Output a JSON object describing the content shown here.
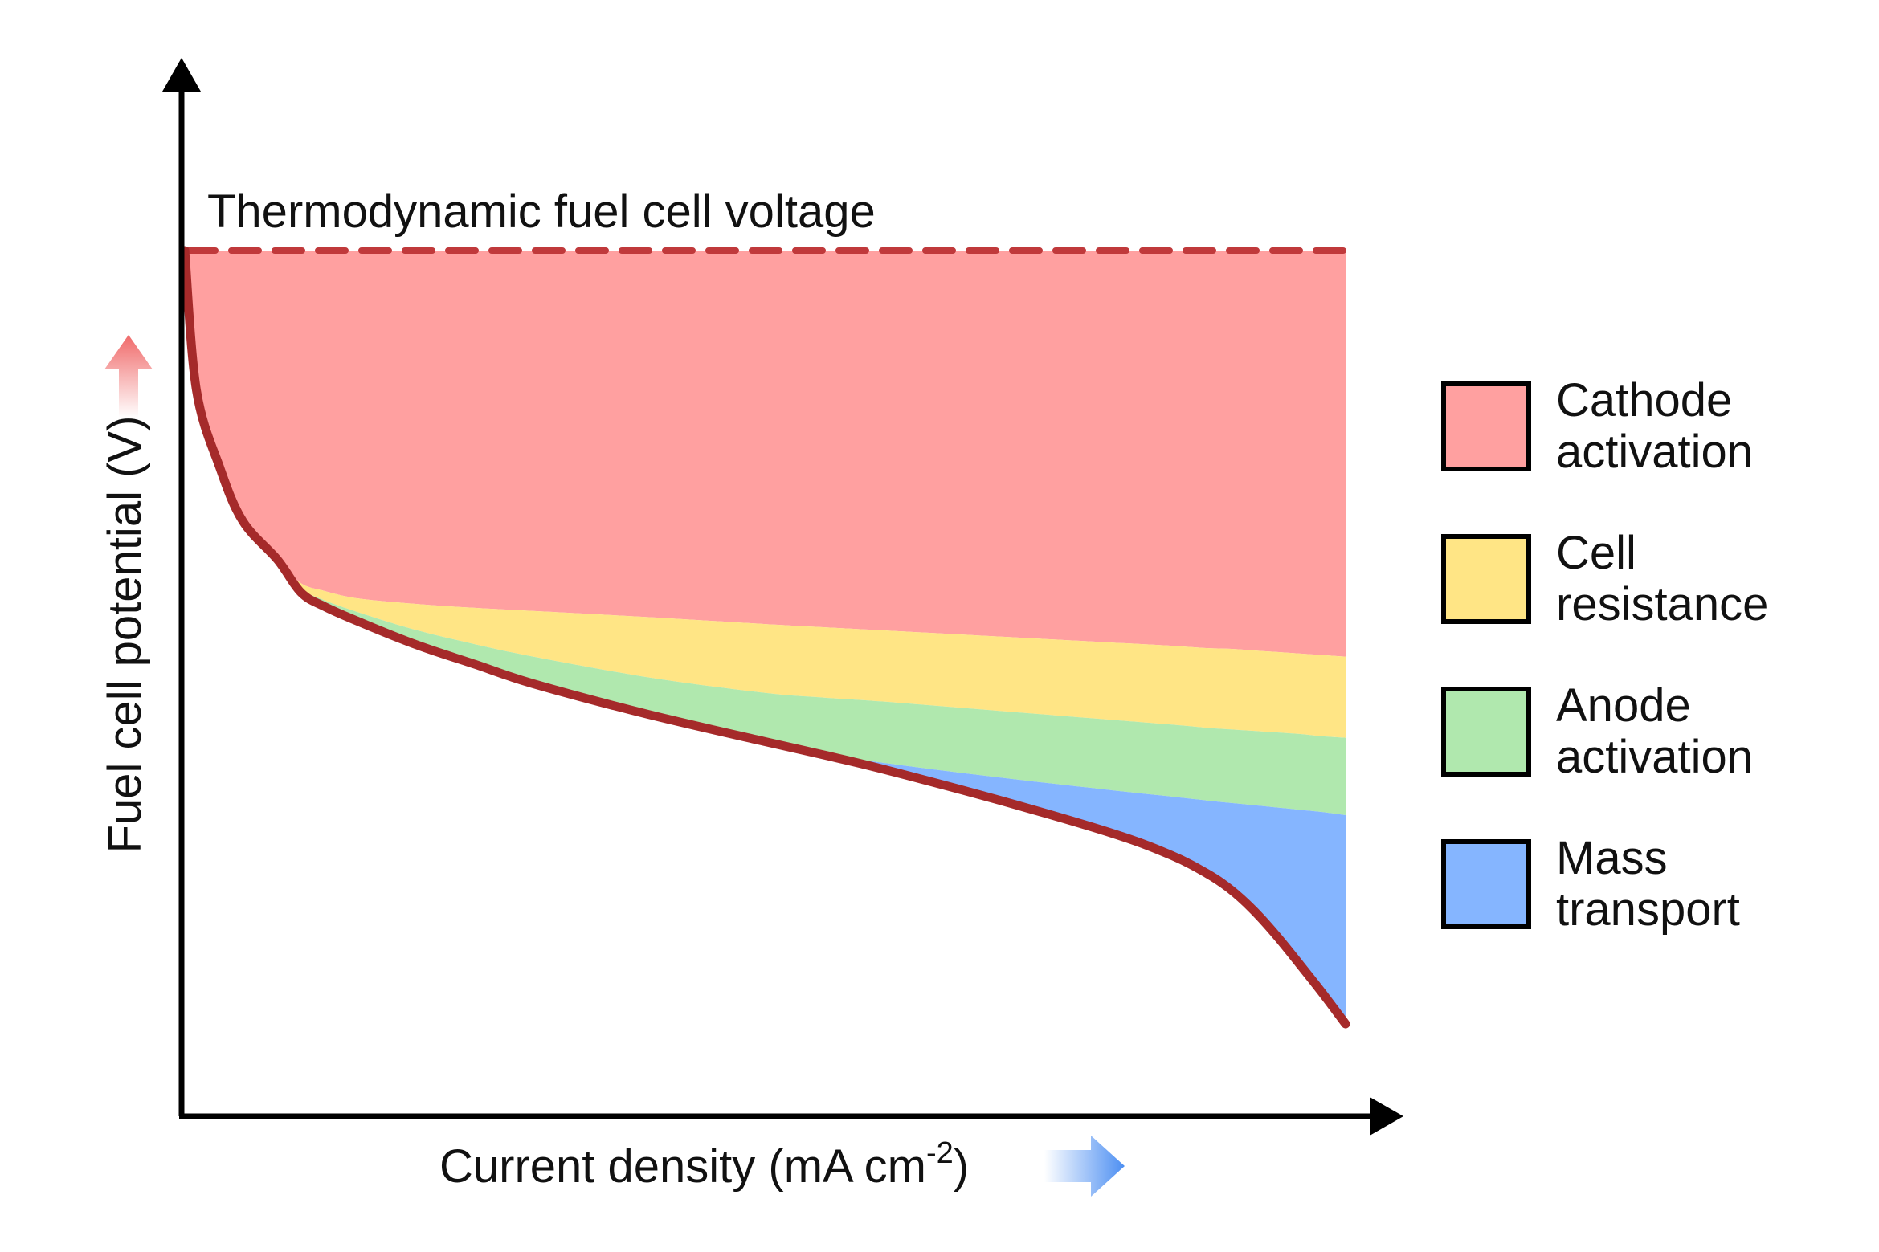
{
  "chart_data": {
    "type": "area",
    "title": "",
    "xlabel": "Current density (mA cm",
    "xlabel_sup": "-2",
    "xlabel_close": ")",
    "ylabel": "Fuel cell potential (V)",
    "annotation": "Thermodynamic fuel cell voltage",
    "x_ticks": [],
    "y_ticks": [],
    "grid": false,
    "legend_position": "right",
    "xlim": [
      0,
      100
    ],
    "ylim": [
      0,
      100
    ],
    "thermodynamic_voltage": 100,
    "x": [
      0,
      1,
      3,
      5,
      8,
      10,
      12,
      15,
      20,
      25,
      30,
      40,
      50,
      55,
      60,
      70,
      80,
      85,
      88,
      90,
      92,
      94,
      96,
      98,
      100
    ],
    "series": [
      {
        "name": "Cathode activation",
        "color": "#ffa0a0",
        "upper": [
          100,
          100,
          100,
          100,
          100,
          100,
          100,
          100,
          100,
          100,
          100,
          100,
          100,
          100,
          100,
          100,
          100,
          100,
          100,
          100,
          100,
          100,
          100,
          100,
          100
        ],
        "lower": [
          100,
          82,
          72,
          65,
          60,
          57,
          56,
          55,
          54.3,
          53.8,
          53.4,
          52.6,
          51.7,
          51.3,
          50.9,
          50.1,
          49.3,
          48.9,
          48.6,
          48.5,
          48.3,
          48.1,
          47.9,
          47.7,
          47.5
        ]
      },
      {
        "name": "Cell resistance",
        "color": "#ffe585",
        "upper": [
          100,
          82,
          72,
          65,
          60,
          57,
          56,
          55,
          54.3,
          53.8,
          53.4,
          52.6,
          51.7,
          51.3,
          50.9,
          50.1,
          49.3,
          48.9,
          48.6,
          48.5,
          48.3,
          48.1,
          47.9,
          47.7,
          47.5
        ],
        "lower": [
          100,
          82,
          72,
          65,
          60,
          56.3,
          54.8,
          53.2,
          50.9,
          49.1,
          47.5,
          44.8,
          42.8,
          42.2,
          41.7,
          40.5,
          39.3,
          38.7,
          38.3,
          38.1,
          37.9,
          37.7,
          37.5,
          37.2,
          37.0
        ]
      },
      {
        "name": "Anode activation",
        "color": "#b0e8ae",
        "upper": [
          100,
          82,
          72,
          65,
          60,
          56.3,
          54.8,
          53.2,
          50.9,
          49.1,
          47.5,
          44.8,
          42.8,
          42.2,
          41.7,
          40.5,
          39.3,
          38.7,
          38.3,
          38.1,
          37.9,
          37.7,
          37.5,
          37.2,
          37.0
        ],
        "lower": [
          100,
          82,
          72,
          65,
          60,
          55.8,
          54.0,
          52.0,
          49.0,
          46.5,
          44.0,
          40.0,
          36.5,
          35.0,
          33.8,
          31.9,
          30.2,
          29.4,
          28.9,
          28.6,
          28.3,
          28.0,
          27.7,
          27.4,
          27.0
        ]
      },
      {
        "name": "Mass transport",
        "color": "#85b5ff",
        "upper": [
          100,
          82,
          72,
          65,
          60,
          55.8,
          54.0,
          52.0,
          49.0,
          46.5,
          44.0,
          40.0,
          36.5,
          35.0,
          33.8,
          31.9,
          30.2,
          29.4,
          28.9,
          28.6,
          28.3,
          28.0,
          27.7,
          27.4,
          27.0
        ],
        "lower": [
          100,
          82,
          72,
          65,
          60,
          55.8,
          54.0,
          52.0,
          49.0,
          46.5,
          44.0,
          40.0,
          36.5,
          34.8,
          33.0,
          29.0,
          24.6,
          21.8,
          19.5,
          17.5,
          14.8,
          11.5,
          7.8,
          4.0,
          0
        ]
      }
    ],
    "polarization_curve": {
      "color": "#a52a2a",
      "y": [
        100,
        82,
        72,
        65,
        60,
        55.8,
        54.0,
        52.0,
        49.0,
        46.5,
        44.0,
        40.0,
        36.5,
        34.8,
        33.0,
        29.0,
        24.6,
        21.8,
        19.5,
        17.5,
        14.8,
        11.5,
        7.8,
        4.0,
        0
      ]
    }
  },
  "colors": {
    "axis": "#000000",
    "dashed_line": "#c0393b",
    "up_arrow": "#f06a6a",
    "right_arrow": "#4d8ff2"
  }
}
